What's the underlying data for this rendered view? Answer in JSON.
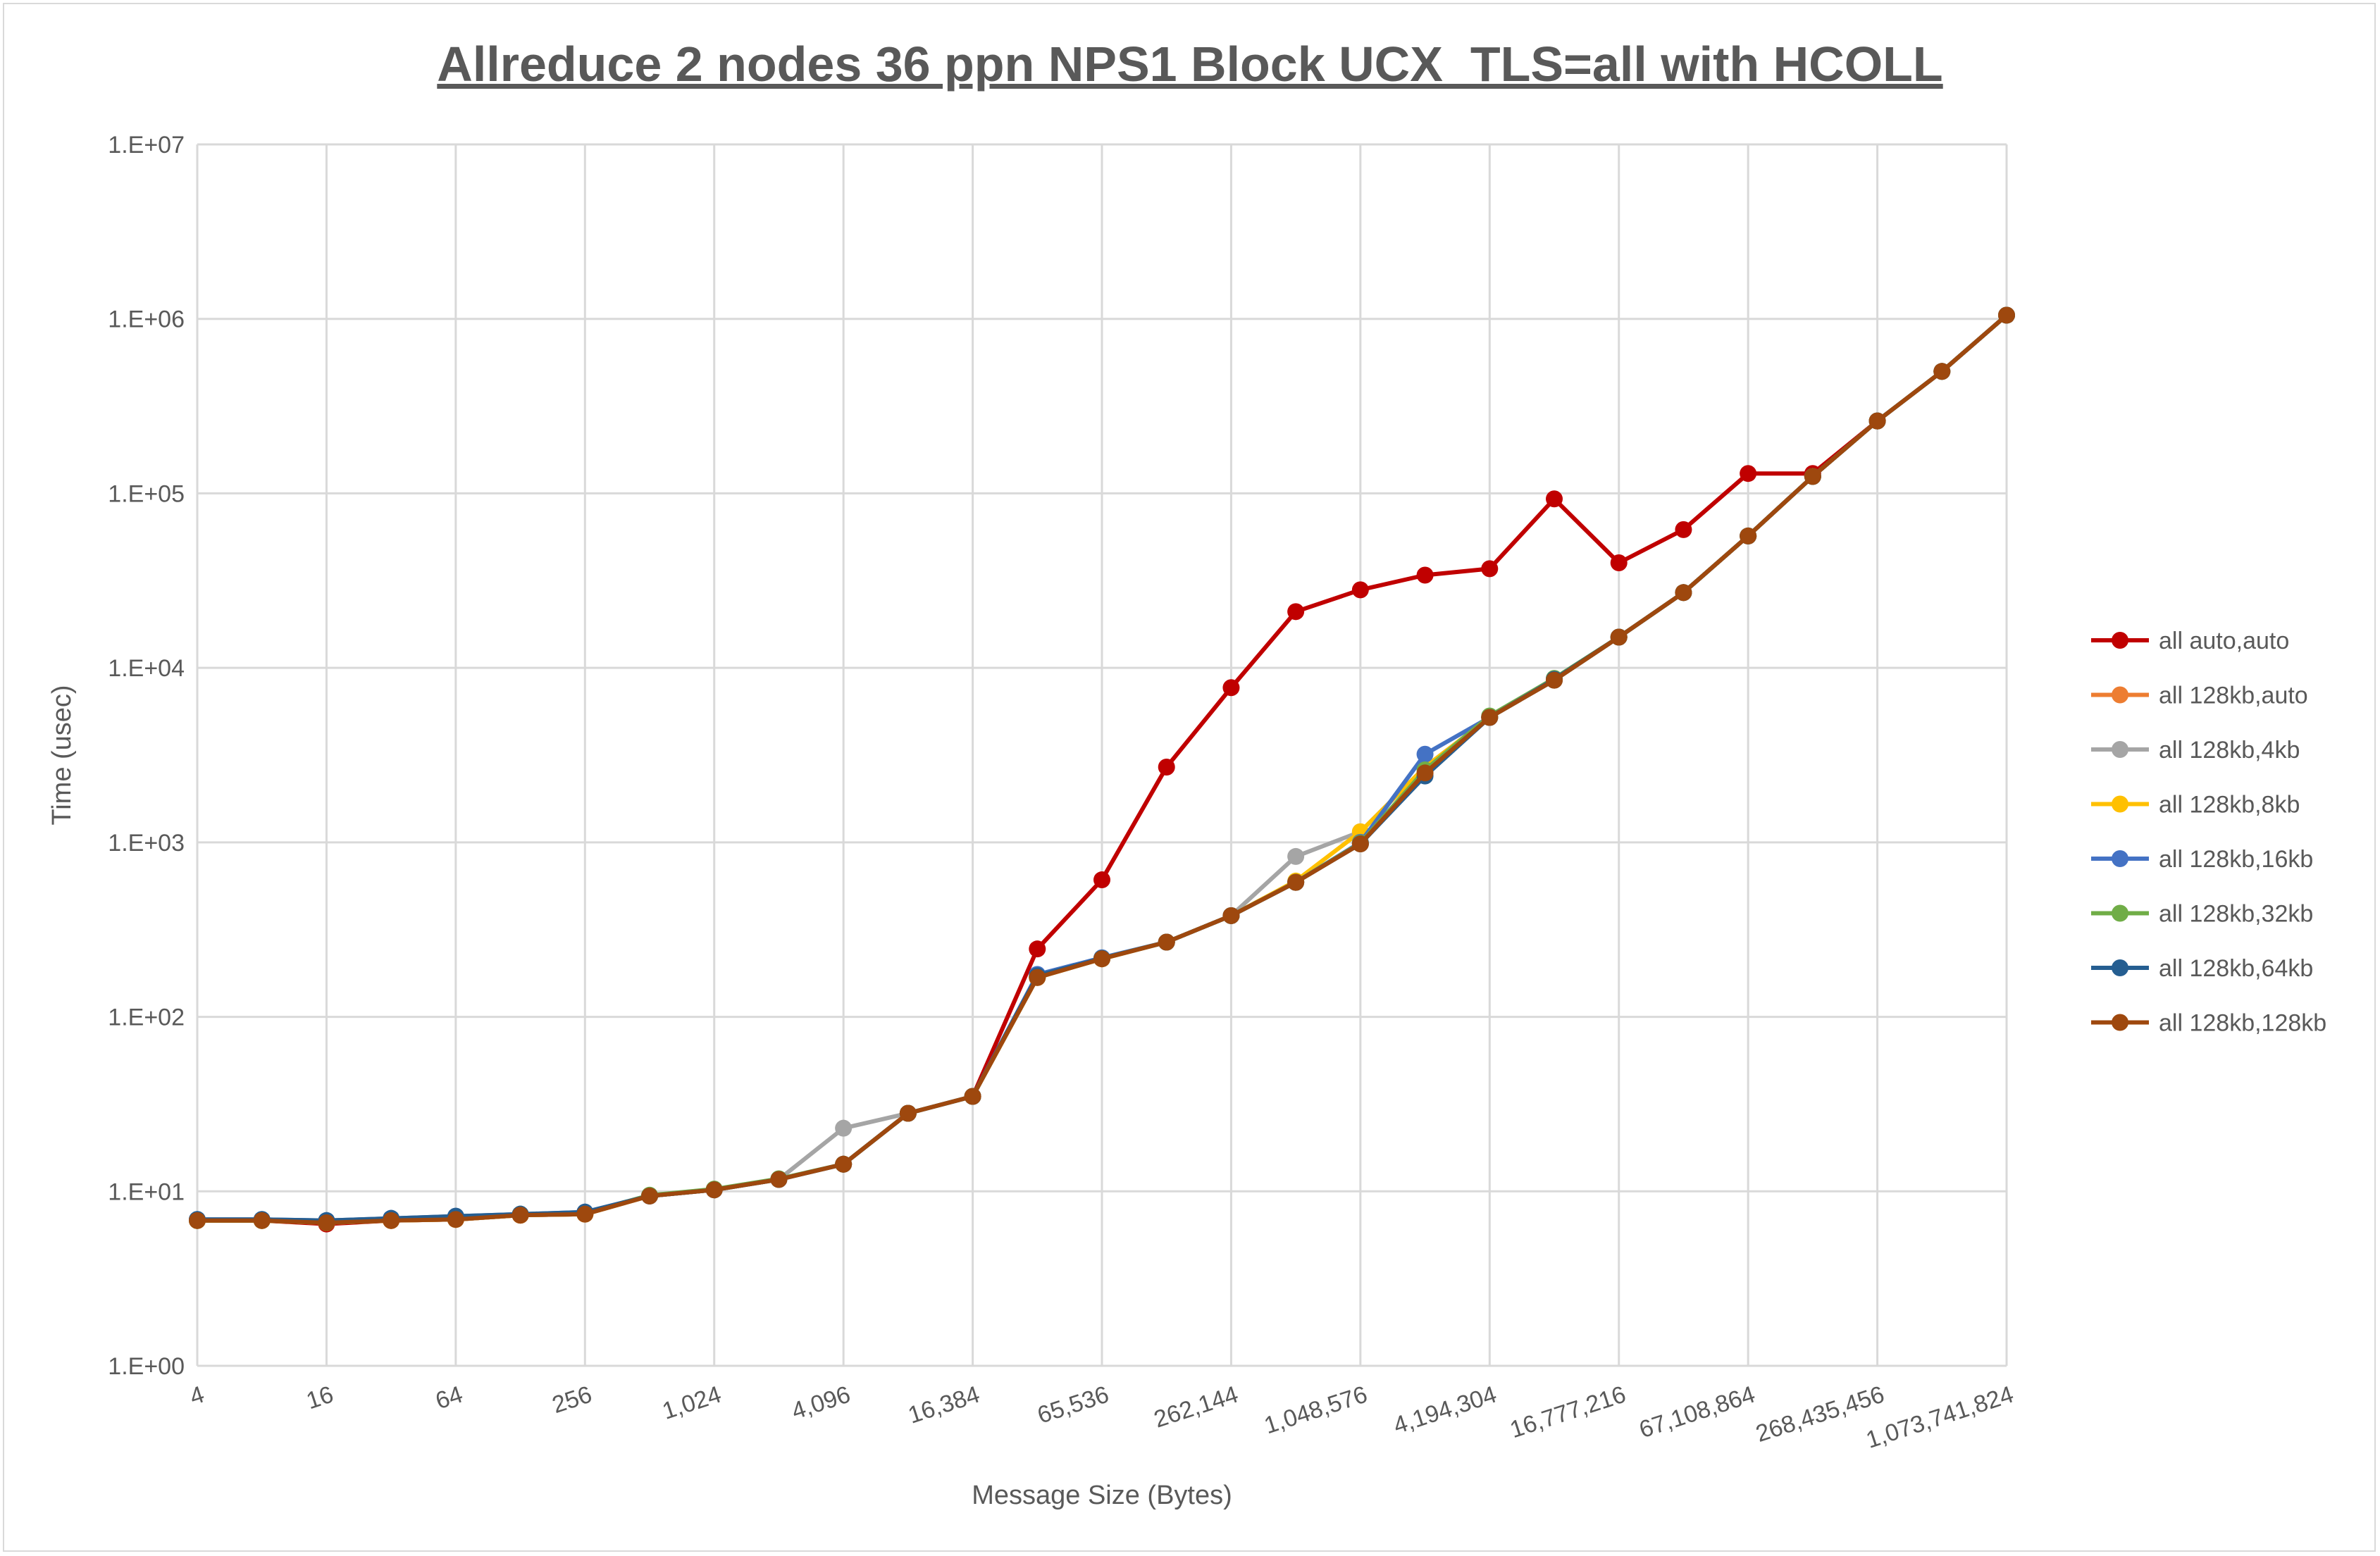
{
  "chart_data": {
    "type": "line",
    "title": "Allreduce 2 nodes 36 ppn NPS1 Block UCX_TLS=all with HCOLL",
    "xlabel": "Message Size (Bytes)",
    "ylabel": "Time (usec)",
    "x_scale": "log2",
    "y_scale": "log10",
    "ylim": [
      1,
      10000000
    ],
    "y_tick_labels": [
      "1.E+00",
      "1.E+01",
      "1.E+02",
      "1.E+03",
      "1.E+04",
      "1.E+05",
      "1.E+06",
      "1.E+07"
    ],
    "x": [
      4,
      8,
      16,
      32,
      64,
      128,
      256,
      512,
      1024,
      2048,
      4096,
      8192,
      16384,
      32768,
      65536,
      131072,
      262144,
      524288,
      1048576,
      2097152,
      4194304,
      8388608,
      16777216,
      33554432,
      67108864,
      134217728,
      268435456,
      536870912,
      1073741824
    ],
    "x_tick_labels": [
      "4",
      "16",
      "64",
      "256",
      "1,024",
      "4,096",
      "16,384",
      "65,536",
      "262,144",
      "1,048,576",
      "4,194,304",
      "16,777,216",
      "67,108,864",
      "268,435,456",
      "1,073,741,824"
    ],
    "grid": true,
    "legend_position": "right",
    "series": [
      {
        "name": "all auto,auto",
        "color": "#C00000",
        "values": [
          6.8,
          6.8,
          6.5,
          6.8,
          6.9,
          7.3,
          7.4,
          9.4,
          10.2,
          11.7,
          14.3,
          28,
          35,
          245,
          610,
          2700,
          7700,
          21000,
          28000,
          34000,
          37000,
          93000,
          40000,
          62000,
          130000,
          130000,
          260000,
          500000,
          1050000
        ]
      },
      {
        "name": "all 128kb,auto",
        "color": "#ED7D31",
        "values": [
          6.8,
          6.8,
          6.6,
          6.8,
          6.9,
          7.3,
          7.4,
          9.4,
          10.2,
          11.7,
          14.3,
          28,
          35,
          168,
          215,
          268,
          380,
          590,
          980,
          2500,
          5200,
          8500,
          15000,
          27000,
          57000,
          125000,
          260000,
          500000,
          1050000
        ]
      },
      {
        "name": "all 128kb,4kb",
        "color": "#A5A5A5",
        "values": [
          6.8,
          6.8,
          6.6,
          6.8,
          6.9,
          7.3,
          7.4,
          9.4,
          10.2,
          11.7,
          23,
          28,
          35,
          168,
          215,
          268,
          380,
          830,
          1150,
          2700,
          5200,
          8500,
          15000,
          27000,
          57000,
          125000,
          260000,
          500000,
          1050000
        ]
      },
      {
        "name": "all 128kb,8kb",
        "color": "#FFC000",
        "values": [
          6.8,
          6.8,
          6.6,
          6.8,
          6.9,
          7.3,
          7.4,
          9.4,
          10.2,
          11.7,
          14.3,
          28,
          35,
          168,
          215,
          268,
          380,
          600,
          1150,
          2700,
          5200,
          8500,
          15000,
          27000,
          57000,
          125000,
          260000,
          500000,
          1050000
        ]
      },
      {
        "name": "all 128kb,16kb",
        "color": "#4472C4",
        "values": [
          6.9,
          6.9,
          6.8,
          7.0,
          7.2,
          7.4,
          7.6,
          9.4,
          10.2,
          11.7,
          14.3,
          28,
          35,
          175,
          218,
          268,
          380,
          590,
          1000,
          3200,
          5200,
          8500,
          15000,
          27000,
          57000,
          125000,
          260000,
          500000,
          1050000
        ]
      },
      {
        "name": "all 128kb,32kb",
        "color": "#70AD47",
        "values": [
          6.8,
          6.8,
          6.7,
          6.9,
          7.0,
          7.4,
          7.5,
          9.5,
          10.3,
          11.8,
          14.3,
          28,
          35,
          170,
          216,
          268,
          380,
          590,
          990,
          2600,
          5300,
          8700,
          15000,
          27000,
          57000,
          125000,
          260000,
          500000,
          1050000
        ]
      },
      {
        "name": "all 128kb,64kb",
        "color": "#255E91",
        "values": [
          6.9,
          6.9,
          6.8,
          7.0,
          7.2,
          7.4,
          7.6,
          9.4,
          10.2,
          11.7,
          14.3,
          28,
          35,
          172,
          216,
          268,
          380,
          590,
          980,
          2400,
          5200,
          8600,
          15000,
          27000,
          57000,
          125000,
          260000,
          500000,
          1050000
        ]
      },
      {
        "name": "all 128kb,128kb",
        "color": "#9E480E",
        "values": [
          6.8,
          6.8,
          6.6,
          6.8,
          6.9,
          7.3,
          7.4,
          9.4,
          10.2,
          11.7,
          14.3,
          28,
          35,
          168,
          215,
          268,
          380,
          590,
          980,
          2500,
          5200,
          8500,
          15000,
          27000,
          57000,
          125000,
          260000,
          500000,
          1050000
        ]
      }
    ]
  }
}
